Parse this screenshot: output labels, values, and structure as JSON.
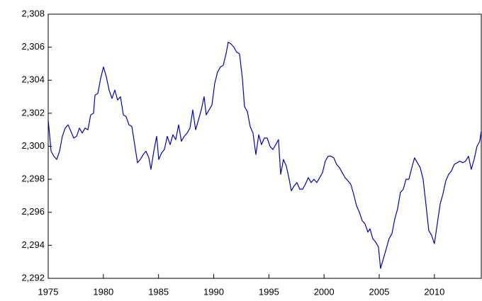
{
  "chart_data": {
    "type": "line",
    "color": "#0000cc",
    "x": [
      1975,
      1975.26,
      1975.51,
      1975.77,
      1976.03,
      1976.28,
      1976.54,
      1976.8,
      1977.06,
      1977.31,
      1977.57,
      1977.83,
      1978.08,
      1978.34,
      1978.6,
      1978.85,
      1979.11,
      1979.24,
      1979.5,
      1979.75,
      1980.01,
      1980.27,
      1980.52,
      1980.78,
      1981.04,
      1981.29,
      1981.55,
      1981.81,
      1982.06,
      1982.32,
      1982.58,
      1982.84,
      1983.09,
      1983.35,
      1983.61,
      1983.86,
      1984.12,
      1984.31,
      1984.57,
      1984.83,
      1985.02,
      1985.28,
      1985.53,
      1985.79,
      1986.05,
      1986.3,
      1986.56,
      1986.82,
      1987.07,
      1987.33,
      1987.59,
      1987.85,
      1988.1,
      1988.36,
      1988.62,
      1988.87,
      1989.13,
      1989.32,
      1989.58,
      1989.84,
      1990.09,
      1990.35,
      1990.61,
      1990.86,
      1991.12,
      1991.31,
      1991.57,
      1991.83,
      1992.08,
      1992.34,
      1992.6,
      1992.79,
      1993.05,
      1993.3,
      1993.56,
      1993.82,
      1994.08,
      1994.33,
      1994.59,
      1994.85,
      1995.1,
      1995.36,
      1995.62,
      1995.87,
      1996.07,
      1996.32,
      1996.58,
      1996.84,
      1997.03,
      1997.29,
      1997.54,
      1997.8,
      1998.06,
      1998.31,
      1998.57,
      1998.83,
      1999.08,
      1999.34,
      1999.6,
      1999.86,
      2000.11,
      2000.37,
      2000.63,
      2000.88,
      2001.14,
      2001.4,
      2001.65,
      2001.91,
      2002.17,
      2002.42,
      2002.68,
      2002.94,
      2003.2,
      2003.45,
      2003.71,
      2003.97,
      2004.16,
      2004.42,
      2004.67,
      2004.93,
      2005.12,
      2005.38,
      2005.64,
      2005.89,
      2006.15,
      2006.41,
      2006.66,
      2006.92,
      2007.18,
      2007.43,
      2007.69,
      2007.95,
      2008.2,
      2008.46,
      2008.72,
      2008.98,
      2009.23,
      2009.49,
      2009.75,
      2010,
      2010.26,
      2010.52,
      2010.77,
      2011.03,
      2011.29,
      2011.54,
      2011.8,
      2012.06,
      2012.31,
      2012.57,
      2012.83,
      2013.09,
      2013.34,
      2013.6,
      2013.86,
      2014.11,
      2014.24
    ],
    "values": [
      2301.6,
      2299.7,
      2299.4,
      2299.2,
      2299.7,
      2300.6,
      2301.1,
      2301.3,
      2300.9,
      2300.5,
      2300.6,
      2301.1,
      2300.8,
      2301.1,
      2301.0,
      2301.9,
      2302.0,
      2303.1,
      2303.2,
      2304.1,
      2304.8,
      2304.2,
      2303.4,
      2302.9,
      2303.4,
      2302.8,
      2303.0,
      2301.9,
      2301.8,
      2301.3,
      2301.2,
      2300.1,
      2299.0,
      2299.2,
      2299.5,
      2299.7,
      2299.3,
      2298.6,
      2299.7,
      2300.6,
      2299.2,
      2299.6,
      2299.8,
      2300.6,
      2300.1,
      2300.7,
      2300.4,
      2301.3,
      2300.3,
      2300.6,
      2300.8,
      2301.1,
      2302.2,
      2301.0,
      2301.6,
      2302.2,
      2303.0,
      2301.9,
      2302.2,
      2302.5,
      2303.8,
      2304.5,
      2304.8,
      2304.9,
      2305.6,
      2306.3,
      2306.2,
      2306.0,
      2305.7,
      2305.6,
      2304.1,
      2302.4,
      2302.1,
      2301.2,
      2300.8,
      2299.5,
      2300.7,
      2300.1,
      2300.5,
      2300.5,
      2300.0,
      2299.8,
      2300.1,
      2300.4,
      2298.3,
      2299.2,
      2298.8,
      2298.0,
      2297.3,
      2297.6,
      2297.8,
      2297.4,
      2297.4,
      2297.7,
      2298.1,
      2297.8,
      2298.0,
      2297.8,
      2298.1,
      2298.4,
      2299.1,
      2299.4,
      2299.4,
      2299.3,
      2298.9,
      2298.7,
      2298.4,
      2298.1,
      2297.9,
      2297.7,
      2297.1,
      2296.4,
      2296.0,
      2295.5,
      2295.3,
      2294.8,
      2295.0,
      2294.4,
      2294.2,
      2293.9,
      2292.6,
      2293.2,
      2293.8,
      2294.4,
      2294.7,
      2295.6,
      2296.2,
      2297.2,
      2297.4,
      2298.0,
      2298.0,
      2298.7,
      2299.3,
      2299.0,
      2298.7,
      2298.0,
      2296.5,
      2294.9,
      2294.6,
      2294.1,
      2295.3,
      2296.5,
      2297.1,
      2297.9,
      2298.3,
      2298.5,
      2298.9,
      2299.0,
      2299.1,
      2299.0,
      2299.1,
      2299.4,
      2298.6,
      2299.2,
      2300.0,
      2300.3,
      2300.9
    ],
    "xlim": [
      1975,
      2014.25
    ],
    "xticks": [
      1975,
      1980,
      1985,
      1990,
      1995,
      2000,
      2005,
      2010
    ],
    "ylim": [
      2292,
      2308
    ],
    "yticks": [
      {
        "value": 2292,
        "label": "2,292"
      },
      {
        "value": 2294,
        "label": "2,294"
      },
      {
        "value": 2296,
        "label": "2,296"
      },
      {
        "value": 2298,
        "label": "2,298"
      },
      {
        "value": 2300,
        "label": "2,300"
      },
      {
        "value": 2302,
        "label": "2,302"
      },
      {
        "value": 2304,
        "label": "2,304"
      },
      {
        "value": 2306,
        "label": "2,306"
      },
      {
        "value": 2308,
        "label": "2,308"
      }
    ],
    "grid": false
  }
}
